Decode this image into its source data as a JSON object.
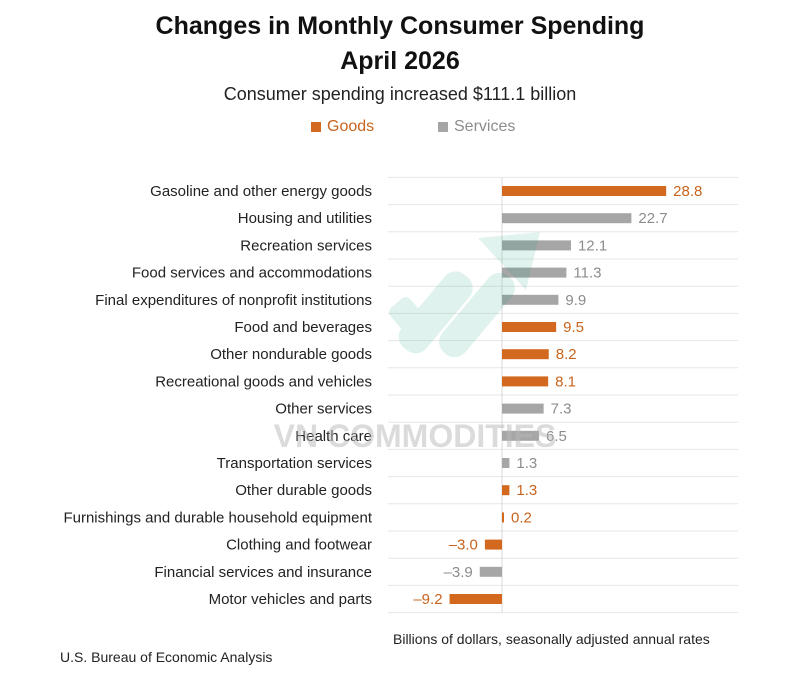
{
  "header": {
    "title": "Changes in Monthly Consumer Spending",
    "title_line2": "April 2026",
    "subtitle": "Consumer spending increased $111.1 billion"
  },
  "legend": {
    "goods": "Goods",
    "services": "Services"
  },
  "colors": {
    "goods": "#d2691e",
    "services": "#a6a6a6",
    "goods_label": "#c8641e",
    "services_label": "#8c8c8c"
  },
  "watermark": "VN COMMODITIES",
  "footer": {
    "note": "Billions of dollars, seasonally adjusted annual rates",
    "source": "U.S. Bureau of Economic Analysis"
  },
  "chart_data": {
    "type": "bar",
    "orientation": "horizontal",
    "categories": [
      "Gasoline and other energy goods",
      "Housing and utilities",
      "Recreation services",
      "Food services and accommodations",
      "Final expenditures of nonprofit institutions",
      "Food and beverages",
      "Other nondurable goods",
      "Recreational goods and vehicles",
      "Other services",
      "Health care",
      "Transportation services",
      "Other durable goods",
      "Furnishings and durable household equipment",
      "Clothing and footwear",
      "Financial services and insurance",
      "Motor vehicles and parts"
    ],
    "values": [
      28.8,
      22.7,
      12.1,
      11.3,
      9.9,
      9.5,
      8.2,
      8.1,
      7.3,
      6.5,
      1.3,
      1.3,
      0.2,
      -3.0,
      -3.9,
      -9.2
    ],
    "labels": [
      "28.8",
      "22.7",
      "12.1",
      "11.3",
      "9.9",
      "9.5",
      "8.2",
      "8.1",
      "7.3",
      "6.5",
      "1.3",
      "1.3",
      "0.2",
      "–3.0",
      "–3.9",
      "–9.2"
    ],
    "groups": [
      "Goods",
      "Services",
      "Services",
      "Services",
      "Services",
      "Goods",
      "Goods",
      "Goods",
      "Services",
      "Services",
      "Services",
      "Goods",
      "Goods",
      "Goods",
      "Services",
      "Goods"
    ],
    "xlim": [
      -10,
      30
    ],
    "grid": "horizontal",
    "legend_position": "top"
  }
}
